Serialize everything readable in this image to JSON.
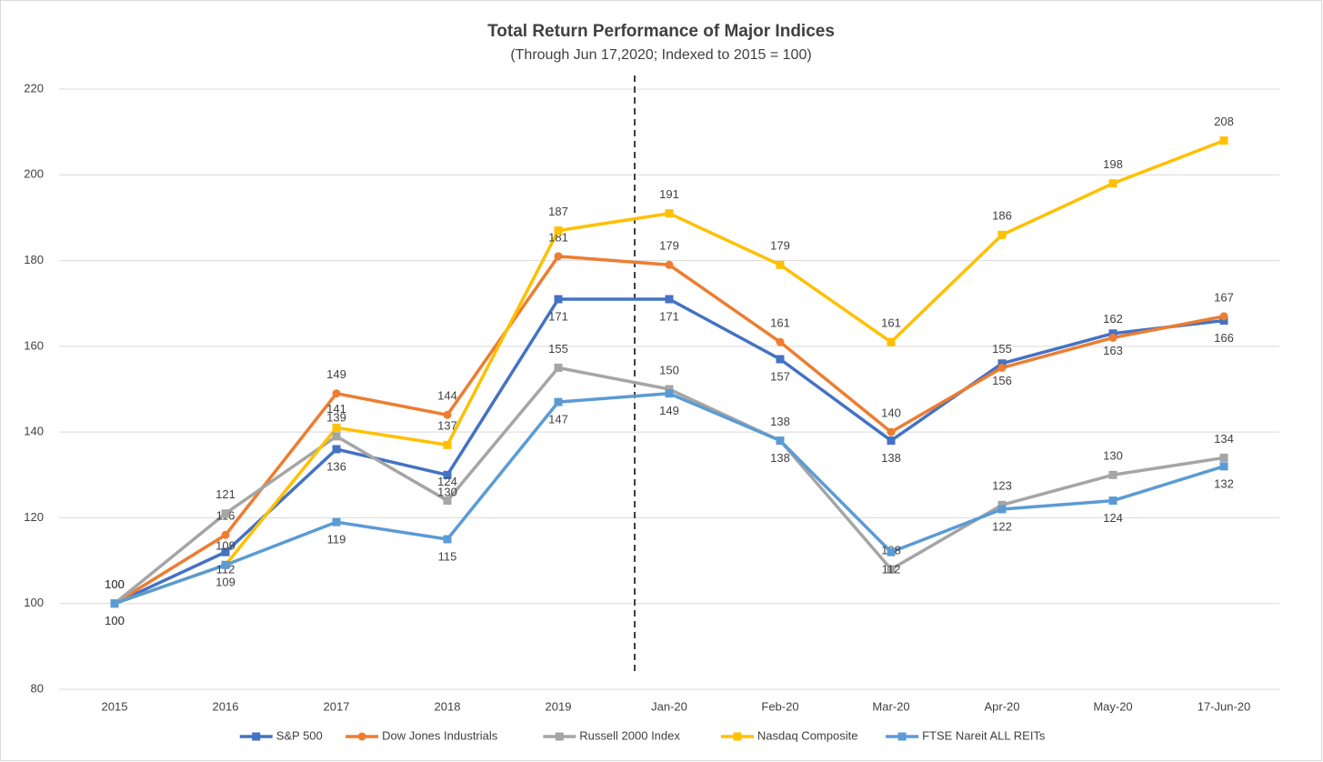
{
  "chart_data": {
    "type": "line",
    "title": "Total Return Performance of Major Indices",
    "subtitle": "(Through Jun 17,2020; Indexed to 2015 = 100)",
    "categories": [
      "2015",
      "2016",
      "2017",
      "2018",
      "2019",
      "Jan-20",
      "Feb-20",
      "Mar-20",
      "Apr-20",
      "May-20",
      "17-Jun-20"
    ],
    "series": [
      {
        "name": "S&P 500",
        "color": "#4472c4",
        "marker": "square",
        "values": [
          100,
          112,
          136,
          130,
          171,
          171,
          157,
          138,
          156,
          163,
          166
        ]
      },
      {
        "name": "Dow Jones Industrials",
        "color": "#ed7d31",
        "marker": "circle",
        "values": [
          100,
          116,
          149,
          144,
          181,
          179,
          161,
          140,
          155,
          162,
          167
        ]
      },
      {
        "name": "Russell 2000 Index",
        "color": "#a5a5a5",
        "marker": "square",
        "values": [
          100,
          121,
          139,
          124,
          155,
          150,
          138,
          108,
          123,
          130,
          134
        ]
      },
      {
        "name": "Nasdaq Composite",
        "color": "#ffc000",
        "marker": "square",
        "values": [
          100,
          109,
          141,
          137,
          187,
          191,
          179,
          161,
          186,
          198,
          208
        ]
      },
      {
        "name": "FTSE Nareit ALL REITs",
        "color": "#5b9bd5",
        "marker": "square",
        "values": [
          100,
          109,
          119,
          115,
          147,
          149,
          138,
          112,
          122,
          124,
          132
        ]
      }
    ],
    "ylim": [
      80,
      220
    ],
    "yticks": [
      80,
      100,
      120,
      140,
      160,
      180,
      200,
      220
    ],
    "grid": true,
    "legend": "bottom"
  }
}
